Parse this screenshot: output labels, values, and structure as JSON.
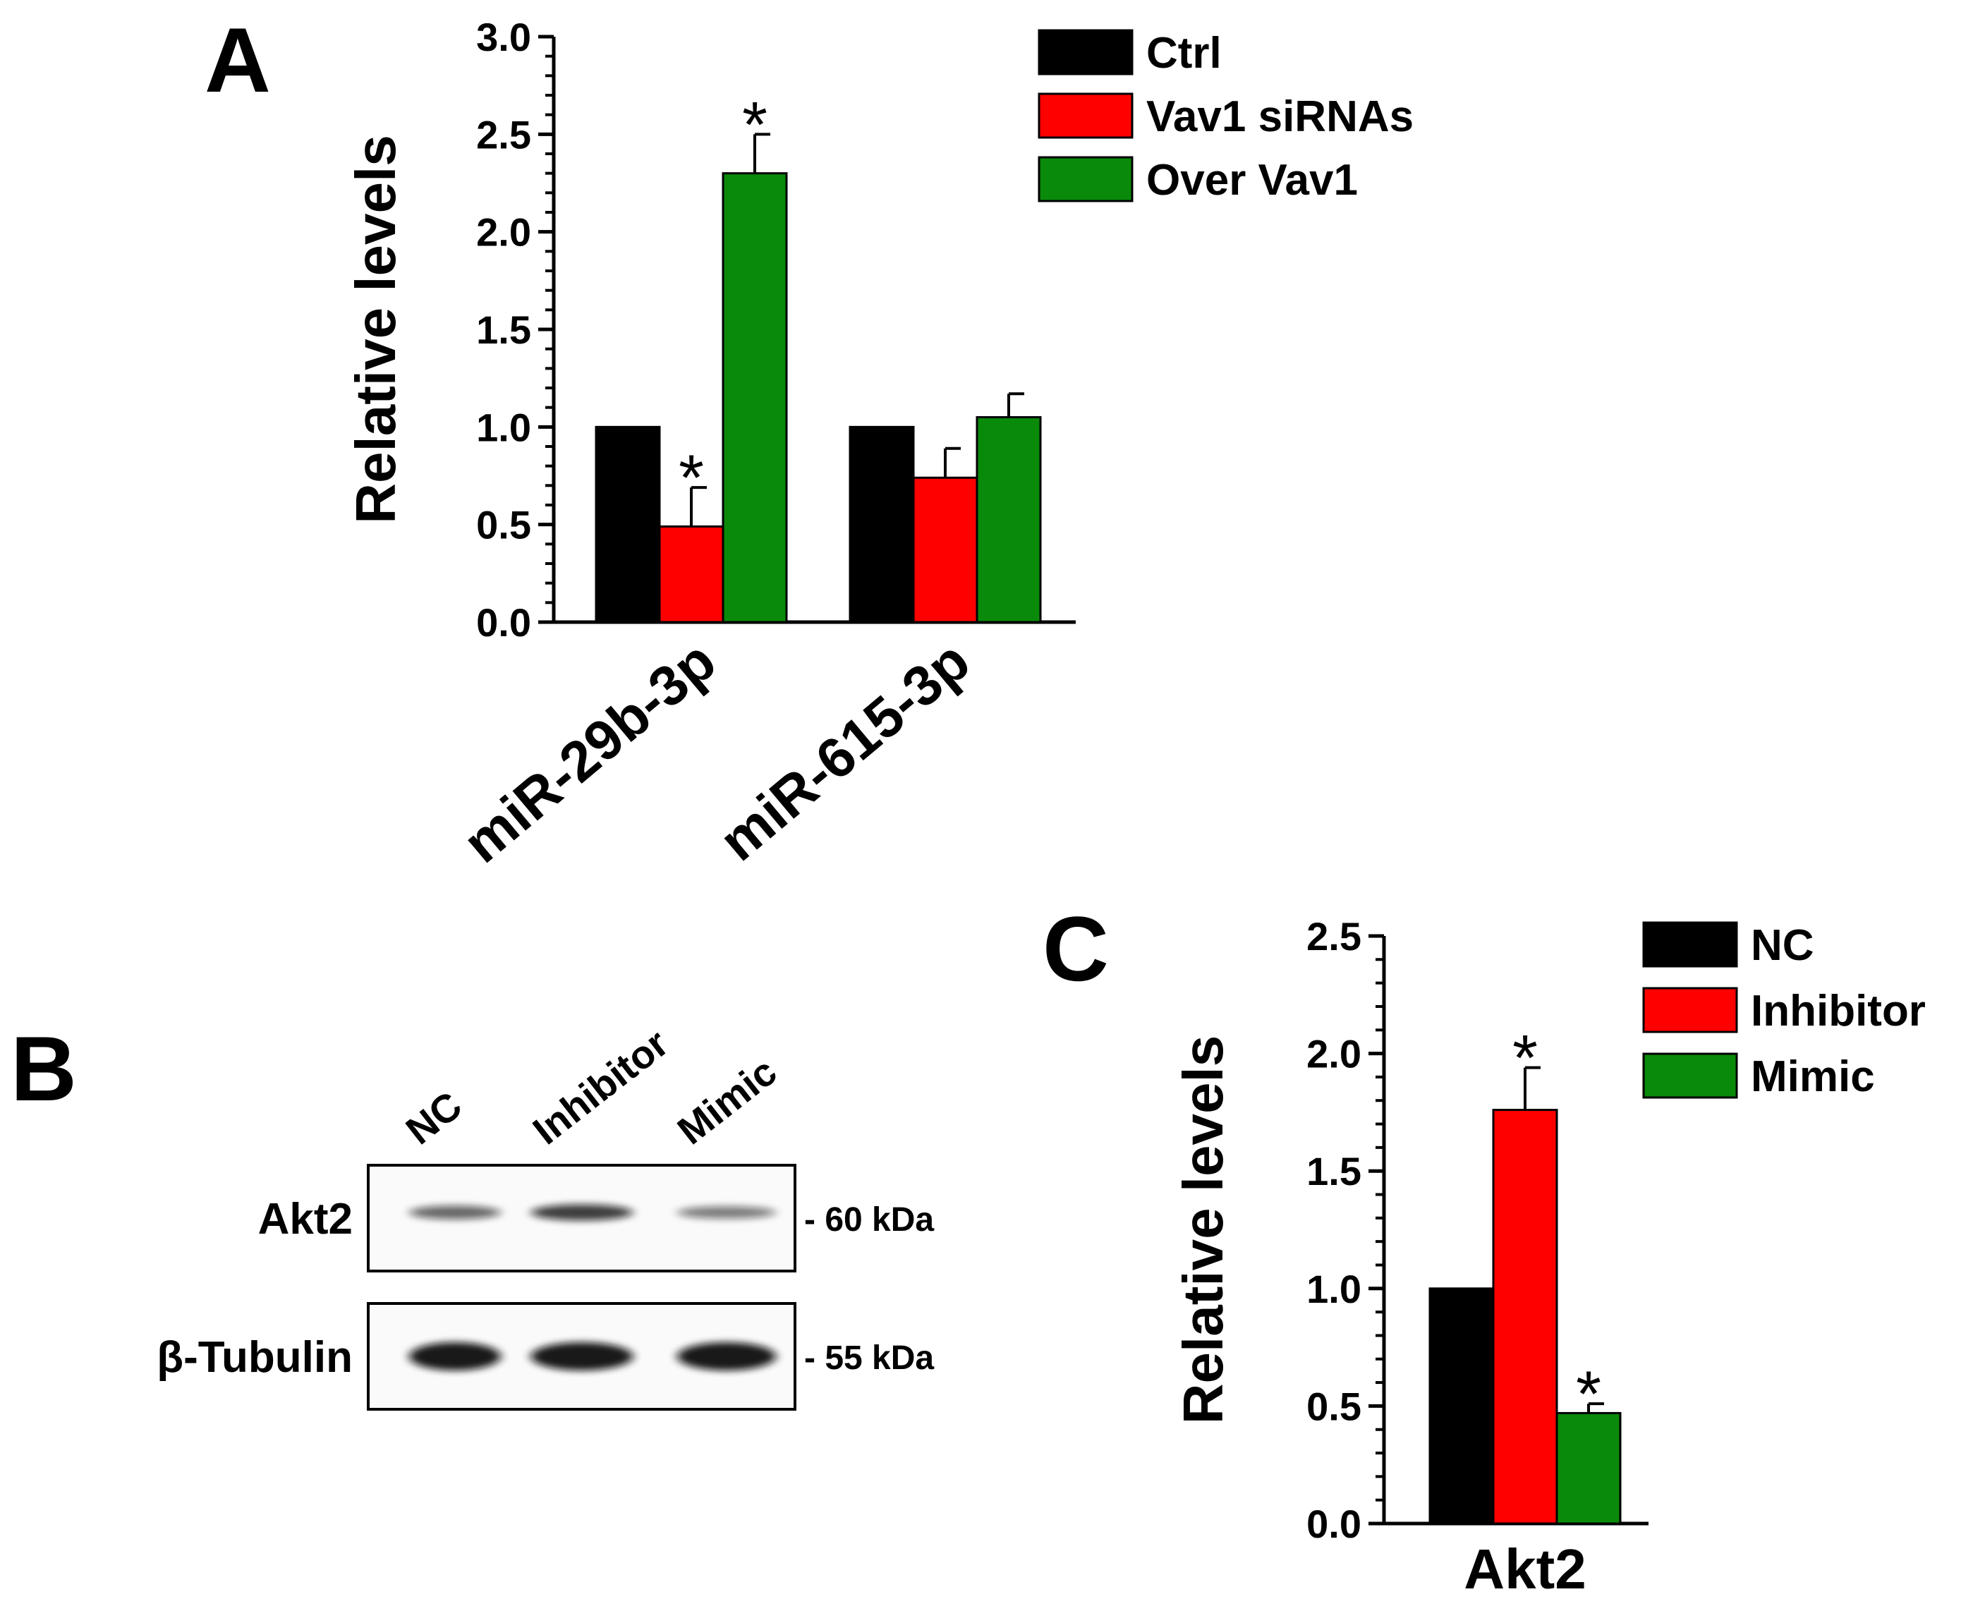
{
  "panels": {
    "a": "A",
    "b": "B",
    "c": "C"
  },
  "colors": {
    "black": "#000000",
    "red": "#ff0000",
    "green": "#0a8a0a"
  },
  "chart_data": [
    {
      "panel": "A",
      "type": "bar",
      "xlabel": "",
      "ylabel": "Relative levels",
      "ylim": [
        0,
        3.0
      ],
      "yticks": [
        "0.0",
        "0.5",
        "1.0",
        "1.5",
        "2.0",
        "2.5",
        "3.0"
      ],
      "legend_position": "top-right",
      "categories": [
        "miR-29b-3p",
        "miR-615-3p"
      ],
      "series": [
        {
          "name": "Ctrl",
          "color": "#000000",
          "values": [
            1.0,
            1.0
          ],
          "errors": [
            0,
            0
          ],
          "significant": [
            false,
            false
          ]
        },
        {
          "name": "Vav1 siRNAs",
          "color": "#ff0000",
          "values": [
            0.49,
            0.74
          ],
          "errors": [
            0.2,
            0.15
          ],
          "significant": [
            true,
            false
          ]
        },
        {
          "name": "Over Vav1",
          "color": "#0a8a0a",
          "values": [
            2.3,
            1.05
          ],
          "errors": [
            0.2,
            0.12
          ],
          "significant": [
            true,
            false
          ]
        }
      ],
      "significance_marker": "*"
    },
    {
      "panel": "C",
      "type": "bar",
      "xlabel": "",
      "ylabel": "Relative levels",
      "ylim": [
        0,
        2.5
      ],
      "yticks": [
        "0.0",
        "0.5",
        "1.0",
        "1.5",
        "2.0",
        "2.5"
      ],
      "legend_position": "top-right",
      "categories": [
        "Akt2"
      ],
      "series": [
        {
          "name": "NC",
          "color": "#000000",
          "values": [
            1.0
          ],
          "errors": [
            0
          ],
          "significant": [
            false
          ]
        },
        {
          "name": "Inhibitor",
          "color": "#ff0000",
          "values": [
            1.76
          ],
          "errors": [
            0.18
          ],
          "significant": [
            true
          ]
        },
        {
          "name": "Mimic",
          "color": "#0a8a0a",
          "values": [
            0.47
          ],
          "errors": [
            0.04
          ],
          "significant": [
            true
          ]
        }
      ],
      "significance_marker": "*"
    }
  ],
  "blot": {
    "lanes": [
      "NC",
      "Inhibitor",
      "Mimic"
    ],
    "rows": [
      {
        "label": "Akt2",
        "size": "- 60 kDa",
        "intensities": [
          0.45,
          0.75,
          0.3
        ]
      },
      {
        "label": "β-Tubulin",
        "size": "- 55 kDa",
        "intensities": [
          1.0,
          1.0,
          0.95
        ]
      }
    ]
  }
}
